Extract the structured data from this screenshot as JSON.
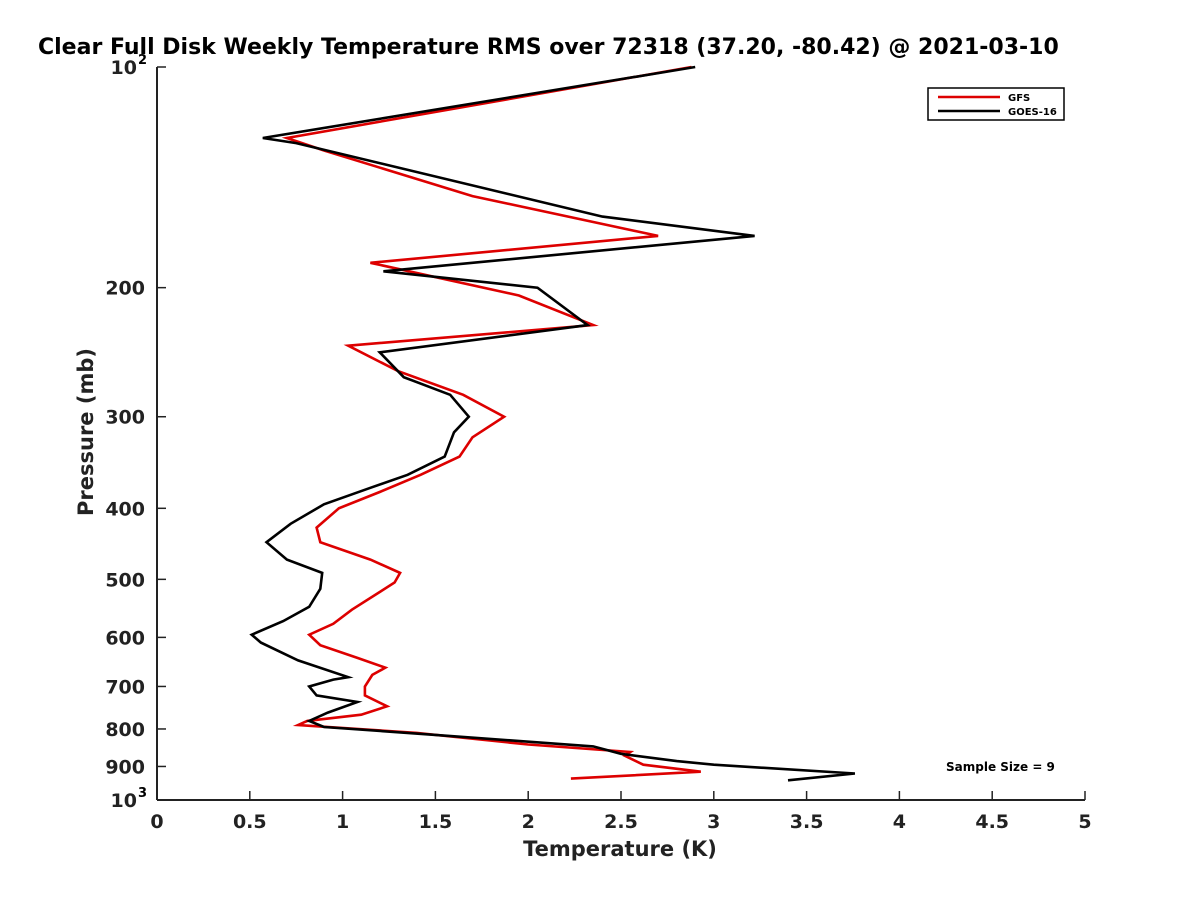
{
  "chart_data": {
    "type": "line",
    "title": "Clear Full Disk Weekly Temperature RMS over 72318 (37.20, -80.42) @ 2021-03-10",
    "xlabel": "Temperature (K)",
    "ylabel": "Pressure (mb)",
    "xlim": [
      0,
      5
    ],
    "ylim": [
      100,
      1000
    ],
    "y_scale": "log",
    "y_reversed": true,
    "grid": false,
    "legend_position": "top-right",
    "x_ticks": [
      0,
      0.5,
      1,
      1.5,
      2,
      2.5,
      3,
      3.5,
      4,
      4.5,
      5
    ],
    "x_tick_labels": [
      "0",
      "0.5",
      "1",
      "1.5",
      "2",
      "2.5",
      "3",
      "3.5",
      "4",
      "4.5",
      "5"
    ],
    "y_ticks": [
      100,
      200,
      300,
      400,
      500,
      600,
      700,
      800,
      900,
      1000
    ],
    "y_tick_labels": [
      {
        "base": "10",
        "exp": "2"
      },
      {
        "base": "200",
        "exp": ""
      },
      {
        "base": "300",
        "exp": ""
      },
      {
        "base": "400",
        "exp": ""
      },
      {
        "base": "500",
        "exp": ""
      },
      {
        "base": "600",
        "exp": ""
      },
      {
        "base": "700",
        "exp": ""
      },
      {
        "base": "800",
        "exp": ""
      },
      {
        "base": "900",
        "exp": ""
      },
      {
        "base": "10",
        "exp": "3"
      }
    ],
    "annotation": "Sample Size = 9",
    "series": [
      {
        "name": "GFS",
        "color": "#dd0000",
        "points": [
          [
            2.88,
            100
          ],
          [
            0.7,
            125
          ],
          [
            0.9,
            130
          ],
          [
            1.7,
            150
          ],
          [
            2.7,
            170
          ],
          [
            1.15,
            185
          ],
          [
            1.95,
            205
          ],
          [
            2.35,
            225
          ],
          [
            1.03,
            240
          ],
          [
            1.3,
            260
          ],
          [
            1.65,
            280
          ],
          [
            1.87,
            300
          ],
          [
            1.7,
            320
          ],
          [
            1.63,
            340
          ],
          [
            1.42,
            360
          ],
          [
            1.2,
            380
          ],
          [
            0.98,
            400
          ],
          [
            0.86,
            425
          ],
          [
            0.88,
            445
          ],
          [
            1.15,
            470
          ],
          [
            1.31,
            490
          ],
          [
            1.28,
            505
          ],
          [
            1.05,
            550
          ],
          [
            0.95,
            575
          ],
          [
            0.82,
            595
          ],
          [
            0.88,
            615
          ],
          [
            1.08,
            640
          ],
          [
            1.23,
            660
          ],
          [
            1.16,
            675
          ],
          [
            1.12,
            700
          ],
          [
            1.12,
            720
          ],
          [
            1.24,
            745
          ],
          [
            1.1,
            765
          ],
          [
            0.81,
            780
          ],
          [
            0.76,
            790
          ],
          [
            1.4,
            810
          ],
          [
            2.0,
            840
          ],
          [
            2.55,
            860
          ],
          [
            2.52,
            870
          ],
          [
            2.62,
            895
          ],
          [
            2.93,
            915
          ],
          [
            2.23,
            935
          ]
        ]
      },
      {
        "name": "GOES-16",
        "color": "#000000",
        "points": [
          [
            2.9,
            100
          ],
          [
            0.57,
            125
          ],
          [
            0.75,
            127
          ],
          [
            2.4,
            160
          ],
          [
            3.22,
            170
          ],
          [
            1.22,
            190
          ],
          [
            2.05,
            200
          ],
          [
            2.32,
            225
          ],
          [
            1.2,
            245
          ],
          [
            1.33,
            265
          ],
          [
            1.58,
            280
          ],
          [
            1.68,
            300
          ],
          [
            1.6,
            315
          ],
          [
            1.55,
            340
          ],
          [
            1.35,
            360
          ],
          [
            1.15,
            375
          ],
          [
            0.9,
            395
          ],
          [
            0.72,
            420
          ],
          [
            0.59,
            445
          ],
          [
            0.7,
            470
          ],
          [
            0.89,
            490
          ],
          [
            0.88,
            515
          ],
          [
            0.82,
            545
          ],
          [
            0.68,
            570
          ],
          [
            0.51,
            595
          ],
          [
            0.56,
            610
          ],
          [
            0.76,
            645
          ],
          [
            1.03,
            680
          ],
          [
            0.95,
            685
          ],
          [
            0.82,
            700
          ],
          [
            0.86,
            720
          ],
          [
            1.08,
            735
          ],
          [
            0.92,
            760
          ],
          [
            0.82,
            780
          ],
          [
            0.9,
            795
          ],
          [
            1.5,
            815
          ],
          [
            2.35,
            845
          ],
          [
            2.5,
            865
          ],
          [
            2.8,
            885
          ],
          [
            3.0,
            895
          ],
          [
            3.76,
            920
          ],
          [
            3.4,
            940
          ]
        ]
      }
    ]
  }
}
